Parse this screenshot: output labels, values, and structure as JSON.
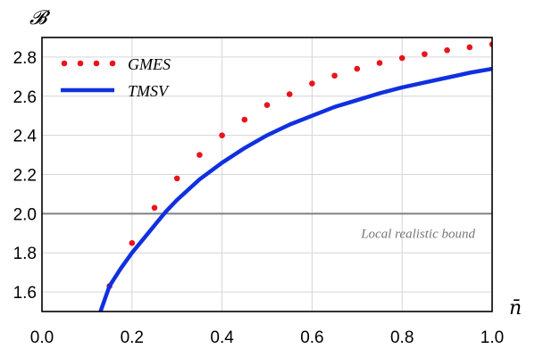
{
  "chart_data": {
    "type": "line",
    "ylabel": "𝓑",
    "xlabel": "n̄",
    "xlim": [
      0.0,
      1.0
    ],
    "ylim": [
      1.5,
      2.9
    ],
    "grid": true,
    "legend_position": "top-left",
    "x_ticks": [
      0.0,
      0.2,
      0.4,
      0.6,
      0.8,
      1.0
    ],
    "x_tick_labels": [
      "0.0",
      "0.2",
      "0.4",
      "0.6",
      "0.8",
      "1.0"
    ],
    "y_ticks": [
      1.6,
      1.8,
      2.0,
      2.2,
      2.4,
      2.6,
      2.8
    ],
    "y_tick_labels": [
      "1.6",
      "1.8",
      "2.0",
      "2.2",
      "2.4",
      "2.6",
      "2.8"
    ],
    "series": [
      {
        "name": "GMES",
        "style": "dotted",
        "color": "#e8141b",
        "x": [
          0.15,
          0.2,
          0.25,
          0.3,
          0.35,
          0.4,
          0.45,
          0.5,
          0.55,
          0.6,
          0.65,
          0.7,
          0.75,
          0.8,
          0.85,
          0.9,
          0.95,
          1.0
        ],
        "y": [
          1.63,
          1.85,
          2.03,
          2.18,
          2.3,
          2.4,
          2.48,
          2.555,
          2.61,
          2.665,
          2.705,
          2.74,
          2.77,
          2.795,
          2.815,
          2.835,
          2.85,
          2.865
        ]
      },
      {
        "name": "TMSV",
        "style": "solid",
        "color": "#1030e0",
        "x": [
          0.13,
          0.15,
          0.175,
          0.2,
          0.225,
          0.25,
          0.275,
          0.3,
          0.35,
          0.4,
          0.45,
          0.5,
          0.55,
          0.6,
          0.65,
          0.7,
          0.75,
          0.8,
          0.85,
          0.9,
          0.95,
          1.0
        ],
        "y": [
          1.5,
          1.63,
          1.72,
          1.8,
          1.87,
          1.94,
          2.01,
          2.07,
          2.175,
          2.26,
          2.335,
          2.4,
          2.455,
          2.5,
          2.545,
          2.58,
          2.615,
          2.645,
          2.67,
          2.695,
          2.72,
          2.74
        ]
      }
    ],
    "reference_lines": [
      {
        "y": 2.0,
        "label": "Local realistic bound",
        "color": "#808080"
      }
    ]
  }
}
